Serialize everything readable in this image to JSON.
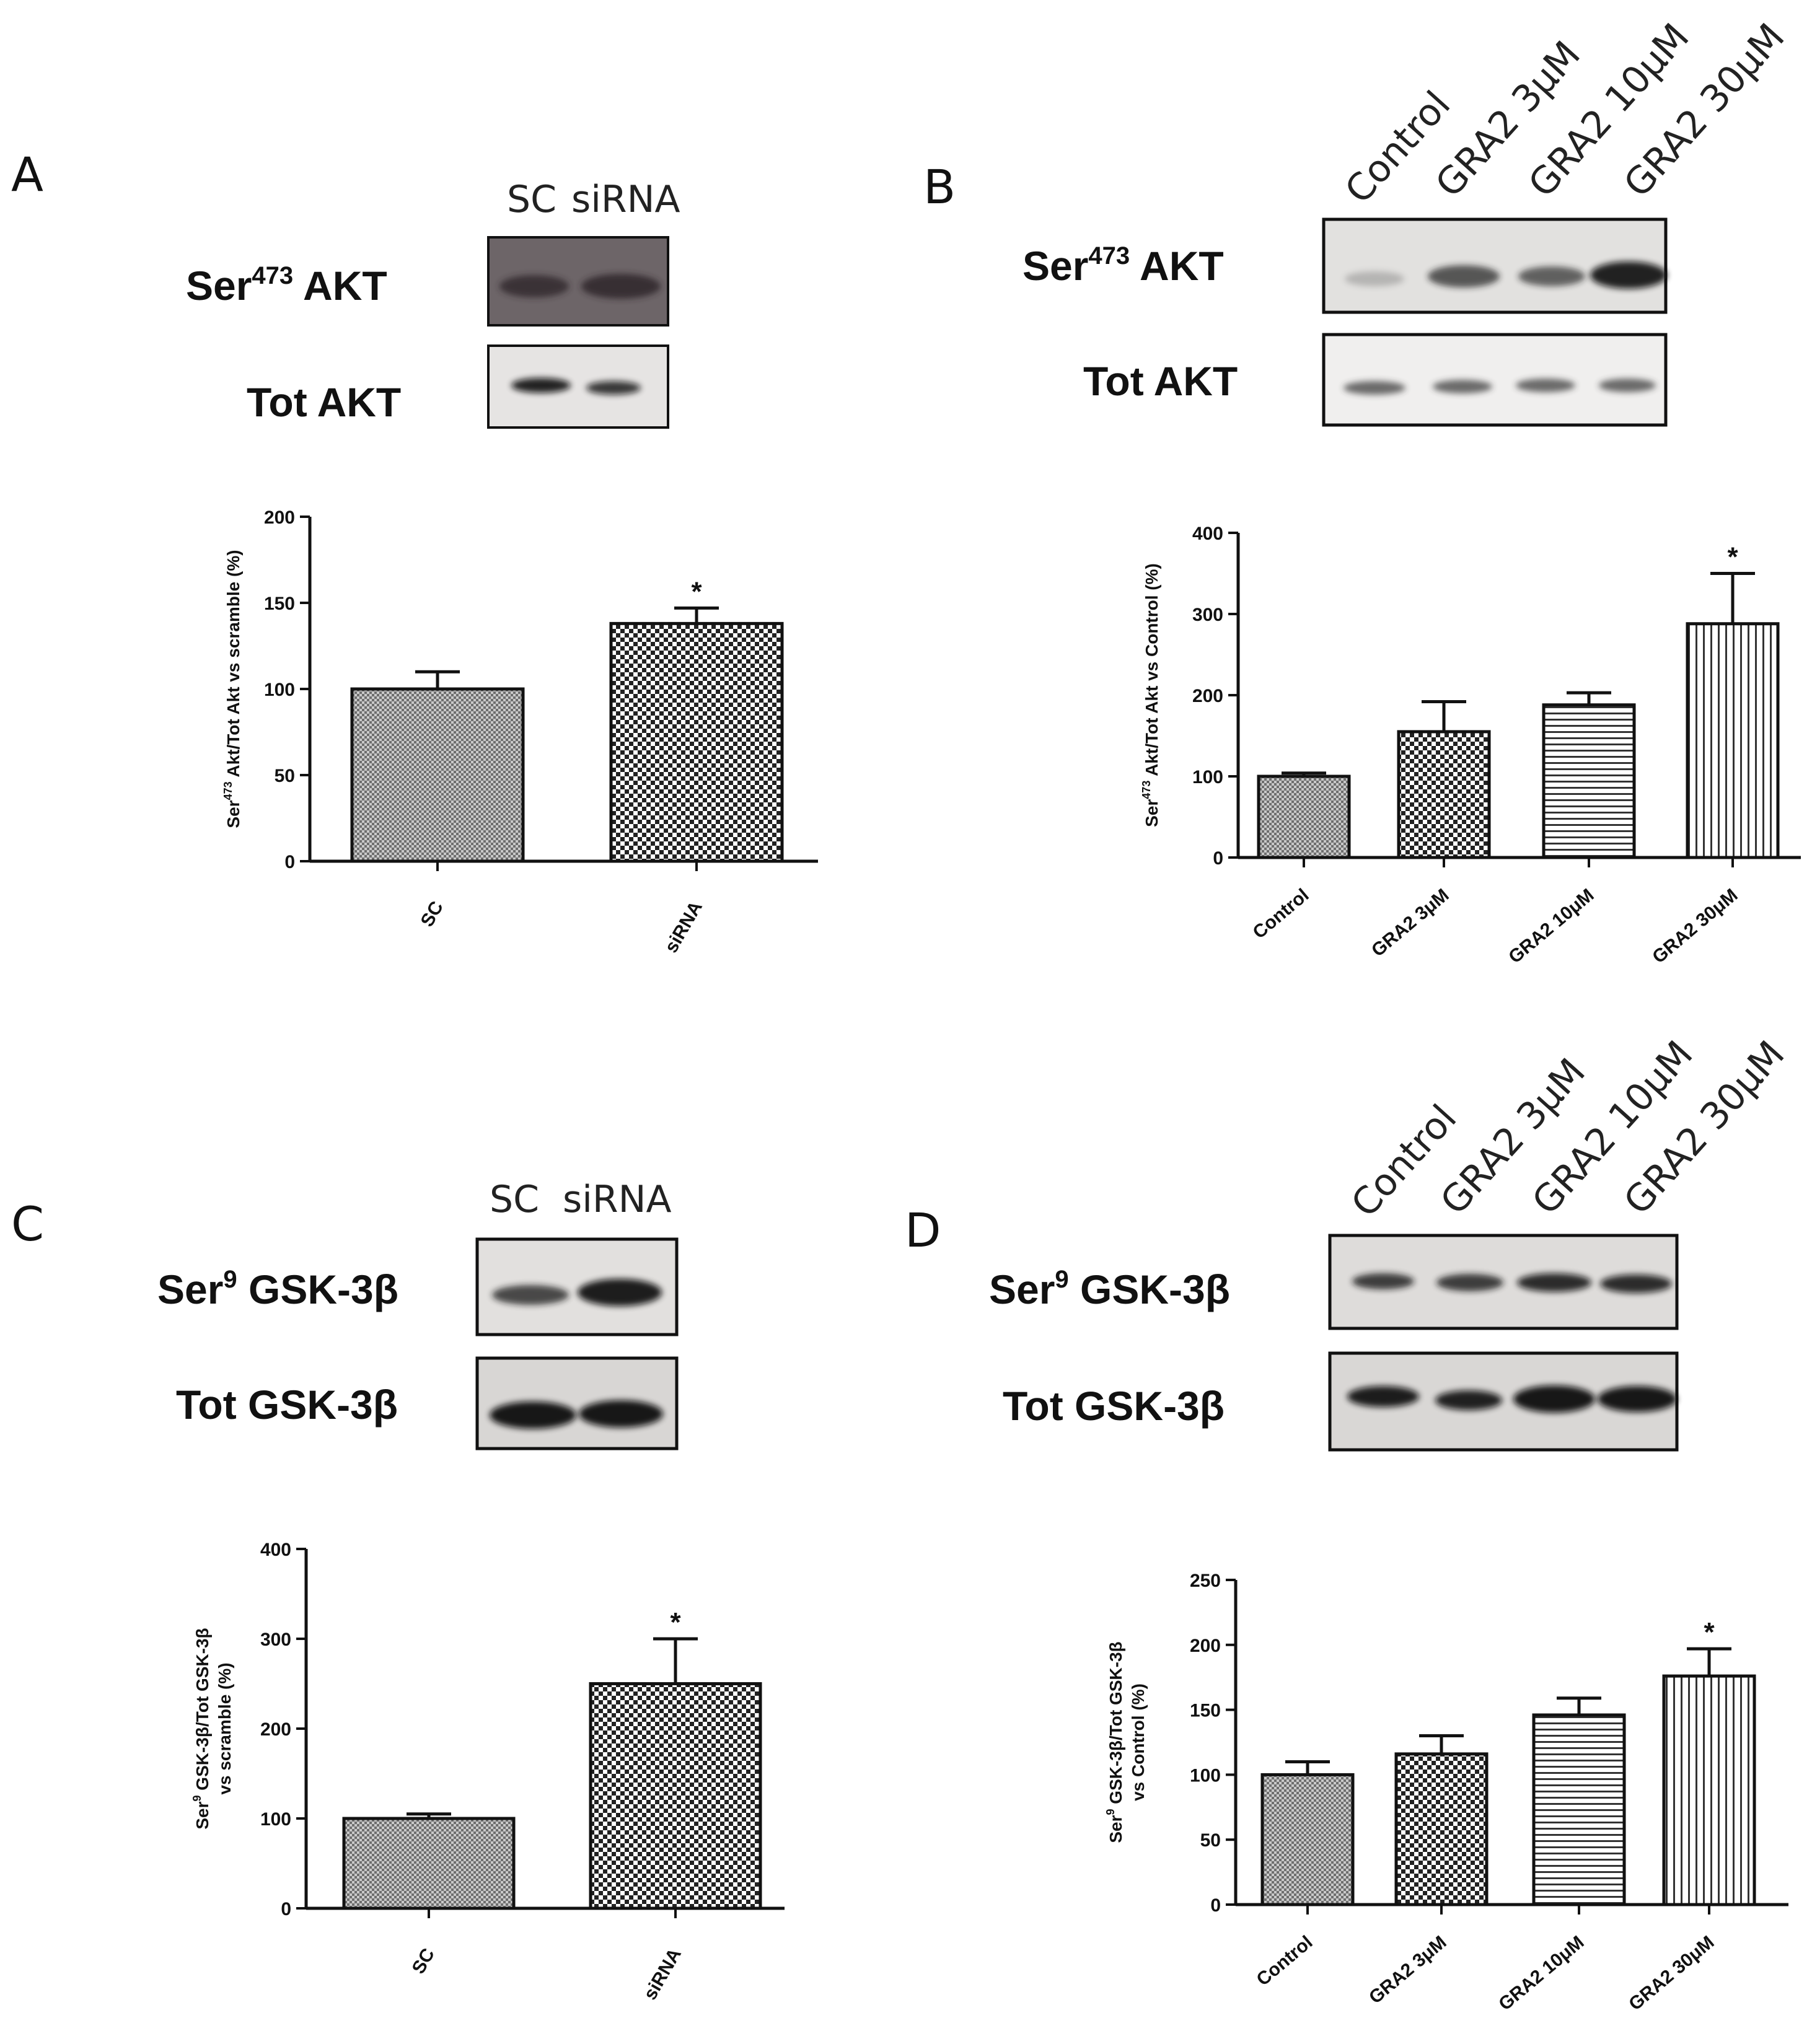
{
  "panels": [
    {
      "letter": "A",
      "lanes": [
        "SC",
        "siRNA"
      ],
      "blots": [
        {
          "label_main": "Ser",
          "label_sup": "473",
          "label_rest": " AKT",
          "bands": [
            0.75,
            0.8
          ],
          "bg": "#6d6568"
        },
        {
          "label_main": "Tot AKT",
          "label_sup": "",
          "label_rest": "",
          "bands": [
            0.9,
            0.8
          ],
          "bg": "#e6e4e3"
        }
      ]
    },
    {
      "letter": "B",
      "lanes": [
        "Control",
        "GRA2 3μM",
        "GRA2 10μM",
        "GRA2 30μM"
      ],
      "blots": [
        {
          "label_main": "Ser",
          "label_sup": "473",
          "label_rest": " AKT",
          "bands": [
            0.15,
            0.55,
            0.5,
            0.9
          ],
          "bg": "#e2e1df"
        },
        {
          "label_main": "Tot AKT",
          "label_sup": "",
          "label_rest": "",
          "bands": [
            0.6,
            0.6,
            0.6,
            0.6
          ],
          "bg": "#f0efee"
        }
      ]
    },
    {
      "letter": "C",
      "lanes": [
        "SC",
        "siRNA"
      ],
      "blots": [
        {
          "label_main": "Ser",
          "label_sup": "9",
          "label_rest": " GSK-3β",
          "bands": [
            0.7,
            0.9
          ],
          "bg": "#e2e0de"
        },
        {
          "label_main": "Tot GSK-3β",
          "label_sup": "",
          "label_rest": "",
          "bands": [
            0.95,
            0.95
          ],
          "bg": "#d8d6d4"
        }
      ]
    },
    {
      "letter": "D",
      "lanes": [
        "Control",
        "GRA2 3μM",
        "GRA2 10μM",
        "GRA2 30μM"
      ],
      "blots": [
        {
          "label_main": "Ser",
          "label_sup": "9",
          "label_rest": " GSK-3β",
          "bands": [
            0.7,
            0.75,
            0.8,
            0.85
          ],
          "bg": "#dedcda"
        },
        {
          "label_main": "Tot GSK-3β",
          "label_sup": "",
          "label_rest": "",
          "bands": [
            0.9,
            0.85,
            0.95,
            0.95
          ],
          "bg": "#d9d7d5"
        }
      ]
    }
  ],
  "chart_data": [
    {
      "panel": "A",
      "type": "bar",
      "categories": [
        "SC",
        "siRNA"
      ],
      "values": [
        100,
        138
      ],
      "errors": [
        10,
        9
      ],
      "significance": [
        "",
        "*"
      ],
      "ylabel_parts": [
        "Ser",
        "473",
        " Akt/Tot Akt vs scramble (%)"
      ],
      "ylim": [
        0,
        200
      ],
      "yticks": [
        0,
        50,
        100,
        150,
        200
      ],
      "patterns": [
        "dense-gray",
        "checker"
      ]
    },
    {
      "panel": "B",
      "type": "bar",
      "categories": [
        "Control",
        "GRA2 3μM",
        "GRA2 10μM",
        "GRA2 30μM"
      ],
      "values": [
        100,
        155,
        188,
        288
      ],
      "errors": [
        4,
        37,
        15,
        62
      ],
      "significance": [
        "",
        "",
        "",
        "*"
      ],
      "ylabel_parts": [
        "Ser",
        "473",
        " Akt/Tot Akt vs Control (%)"
      ],
      "ylim": [
        0,
        400
      ],
      "yticks": [
        0,
        100,
        200,
        300,
        400
      ],
      "patterns": [
        "dense-gray",
        "checker",
        "hstripes",
        "vstripes"
      ]
    },
    {
      "panel": "C",
      "type": "bar",
      "categories": [
        "SC",
        "siRNA"
      ],
      "values": [
        100,
        250
      ],
      "errors": [
        5,
        50
      ],
      "significance": [
        "",
        "*"
      ],
      "ylabel_parts": [
        "Ser",
        "9",
        " GSK-3β/Tot GSK-3β"
      ],
      "ylabel_line2": "vs scramble (%)",
      "ylim": [
        0,
        400
      ],
      "yticks": [
        0,
        100,
        200,
        300,
        400
      ],
      "patterns": [
        "dense-gray",
        "checker"
      ]
    },
    {
      "panel": "D",
      "type": "bar",
      "categories": [
        "Control",
        "GRA2 3μM",
        "GRA2 10μM",
        "GRA2 30μM"
      ],
      "values": [
        100,
        116,
        146,
        176
      ],
      "errors": [
        10,
        14,
        13,
        21
      ],
      "significance": [
        "",
        "",
        "",
        "*"
      ],
      "ylabel_parts": [
        "Ser",
        "9",
        " GSK-3β/Tot GSK-3β"
      ],
      "ylabel_line2": "vs Control (%)",
      "ylim": [
        0,
        250
      ],
      "yticks": [
        0,
        50,
        100,
        150,
        200,
        250
      ],
      "patterns": [
        "dense-gray",
        "checker",
        "hstripes",
        "vstripes"
      ]
    }
  ]
}
